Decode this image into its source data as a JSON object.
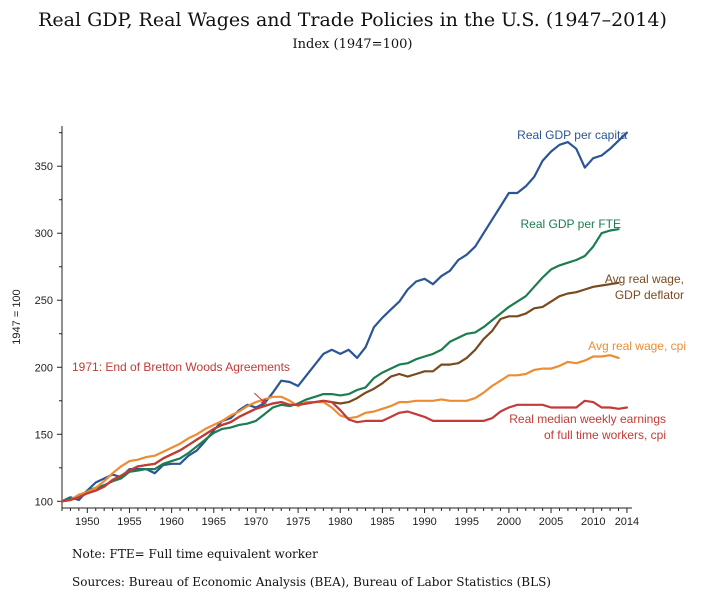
{
  "chart_data": {
    "type": "line",
    "title": "Real GDP, Real Wages and Trade Policies in the U.S. (1947–2014)",
    "subtitle": "Index (1947=100)",
    "ylabel": "1947 = 100",
    "xlabel": "",
    "xlim": [
      1947,
      2014
    ],
    "ylim": [
      95,
      380
    ],
    "x_ticks": [
      1950,
      1955,
      1960,
      1965,
      1970,
      1975,
      1980,
      1985,
      1990,
      1995,
      2000,
      2005,
      2010,
      2014
    ],
    "y_ticks": [
      100,
      150,
      200,
      250,
      300,
      350
    ],
    "grid": false,
    "series": [
      {
        "name": "Real GDP per capita",
        "color": "#2b5594",
        "x": [
          1947,
          1948,
          1949,
          1950,
          1951,
          1952,
          1953,
          1954,
          1955,
          1956,
          1957,
          1958,
          1959,
          1960,
          1961,
          1962,
          1963,
          1964,
          1965,
          1966,
          1967,
          1968,
          1969,
          1970,
          1971,
          1972,
          1973,
          1974,
          1975,
          1976,
          1977,
          1978,
          1979,
          1980,
          1981,
          1982,
          1983,
          1984,
          1985,
          1986,
          1987,
          1988,
          1989,
          1990,
          1991,
          1992,
          1993,
          1994,
          1995,
          1996,
          1997,
          1998,
          1999,
          2000,
          2001,
          2002,
          2003,
          2004,
          2005,
          2006,
          2007,
          2008,
          2009,
          2010,
          2011,
          2012,
          2013,
          2014
        ],
        "values": [
          100,
          103,
          101,
          108,
          114,
          117,
          120,
          118,
          124,
          124,
          124,
          121,
          127,
          128,
          128,
          134,
          138,
          145,
          153,
          160,
          162,
          168,
          172,
          170,
          173,
          181,
          190,
          189,
          186,
          194,
          202,
          210,
          213,
          210,
          213,
          207,
          215,
          230,
          237,
          243,
          249,
          258,
          264,
          266,
          262,
          268,
          272,
          280,
          284,
          290,
          300,
          310,
          320,
          330,
          330,
          335,
          342,
          354,
          361,
          366,
          368,
          363,
          349,
          356,
          358,
          363,
          369,
          375
        ]
      },
      {
        "name": "Real GDP per FTE",
        "color": "#1d7d50",
        "x": [
          1947,
          1948,
          1949,
          1950,
          1951,
          1952,
          1953,
          1954,
          1955,
          1956,
          1957,
          1958,
          1959,
          1960,
          1961,
          1962,
          1963,
          1964,
          1965,
          1966,
          1967,
          1968,
          1969,
          1970,
          1971,
          1972,
          1973,
          1974,
          1975,
          1976,
          1977,
          1978,
          1979,
          1980,
          1981,
          1982,
          1983,
          1984,
          1985,
          1986,
          1987,
          1988,
          1989,
          1990,
          1991,
          1992,
          1993,
          1994,
          1995,
          1996,
          1997,
          1998,
          1999,
          2000,
          2001,
          2002,
          2003,
          2004,
          2005,
          2006,
          2007,
          2008,
          2009,
          2010,
          2011,
          2012,
          2013
        ],
        "values": [
          100,
          102,
          103,
          108,
          110,
          112,
          115,
          117,
          122,
          123,
          124,
          124,
          128,
          130,
          132,
          136,
          141,
          146,
          151,
          154,
          155,
          157,
          158,
          160,
          165,
          170,
          172,
          171,
          173,
          176,
          178,
          180,
          180,
          179,
          180,
          183,
          185,
          192,
          196,
          199,
          202,
          203,
          206,
          208,
          210,
          213,
          219,
          222,
          225,
          226,
          230,
          235,
          240,
          245,
          249,
          253,
          260,
          267,
          273,
          276,
          278,
          280,
          283,
          290,
          300,
          302,
          303
        ]
      },
      {
        "name": "Avg real wage, GDP deflator",
        "color": "#7a4a1f",
        "x": [
          1947,
          1948,
          1949,
          1950,
          1951,
          1952,
          1953,
          1954,
          1955,
          1956,
          1957,
          1958,
          1959,
          1960,
          1961,
          1962,
          1963,
          1964,
          1965,
          1966,
          1967,
          1968,
          1969,
          1970,
          1971,
          1972,
          1973,
          1974,
          1975,
          1976,
          1977,
          1978,
          1979,
          1980,
          1981,
          1982,
          1983,
          1984,
          1985,
          1986,
          1987,
          1988,
          1989,
          1990,
          1991,
          1992,
          1993,
          1994,
          1995,
          1996,
          1997,
          1998,
          1999,
          2000,
          2001,
          2002,
          2003,
          2004,
          2005,
          2006,
          2007,
          2008,
          2009,
          2010,
          2011,
          2012,
          2013
        ],
        "values": [
          100,
          101,
          103,
          106,
          108,
          111,
          116,
          119,
          123,
          126,
          127,
          128,
          132,
          135,
          138,
          142,
          146,
          150,
          154,
          157,
          159,
          163,
          166,
          169,
          171,
          173,
          174,
          172,
          172,
          173,
          174,
          175,
          174,
          173,
          174,
          177,
          181,
          184,
          188,
          193,
          195,
          193,
          195,
          197,
          197,
          202,
          202,
          203,
          207,
          213,
          221,
          227,
          236,
          238,
          238,
          240,
          244,
          245,
          249,
          253,
          255,
          256,
          258,
          260,
          261,
          262,
          263
        ]
      },
      {
        "name": "Avg real wage, cpi",
        "color": "#ec8d33",
        "x": [
          1947,
          1948,
          1949,
          1950,
          1951,
          1952,
          1953,
          1954,
          1955,
          1956,
          1957,
          1958,
          1959,
          1960,
          1961,
          1962,
          1963,
          1964,
          1965,
          1966,
          1967,
          1968,
          1969,
          1970,
          1971,
          1972,
          1973,
          1974,
          1975,
          1976,
          1977,
          1978,
          1979,
          1980,
          1981,
          1982,
          1983,
          1984,
          1985,
          1986,
          1987,
          1988,
          1989,
          1990,
          1991,
          1992,
          1993,
          1994,
          1995,
          1996,
          1997,
          1998,
          1999,
          2000,
          2001,
          2002,
          2003,
          2004,
          2005,
          2006,
          2007,
          2008,
          2009,
          2010,
          2011,
          2012,
          2013
        ],
        "values": [
          100,
          101,
          105,
          107,
          110,
          115,
          121,
          126,
          130,
          131,
          133,
          134,
          137,
          140,
          143,
          147,
          150,
          154,
          157,
          160,
          164,
          167,
          171,
          174,
          176,
          178,
          178,
          175,
          171,
          174,
          174,
          174,
          170,
          164,
          162,
          163,
          166,
          167,
          169,
          171,
          174,
          174,
          175,
          175,
          175,
          176,
          175,
          175,
          175,
          177,
          181,
          186,
          190,
          194,
          194,
          195,
          198,
          199,
          199,
          201,
          204,
          203,
          205,
          208,
          208,
          209,
          207
        ]
      },
      {
        "name": "Real median weekly earnings of full time workers, cpi",
        "color": "#c23b37",
        "x": [
          1947,
          1948,
          1949,
          1950,
          1951,
          1952,
          1953,
          1954,
          1955,
          1956,
          1957,
          1958,
          1959,
          1960,
          1961,
          1962,
          1963,
          1964,
          1965,
          1966,
          1967,
          1968,
          1969,
          1970,
          1971,
          1972,
          1973,
          1974,
          1975,
          1976,
          1977,
          1978,
          1979,
          1980,
          1981,
          1982,
          1983,
          1984,
          1985,
          1986,
          1987,
          1988,
          1989,
          1990,
          1991,
          1992,
          1993,
          1994,
          1995,
          1996,
          1997,
          1998,
          1999,
          2000,
          2001,
          2002,
          2003,
          2004,
          2005,
          2006,
          2007,
          2008,
          2009,
          2010,
          2011,
          2012,
          2013,
          2014
        ],
        "values": [
          100,
          101,
          103,
          106,
          108,
          111,
          116,
          119,
          123,
          126,
          127,
          128,
          132,
          135,
          138,
          142,
          146,
          150,
          154,
          157,
          159,
          163,
          166,
          169,
          171,
          173,
          174,
          172,
          172,
          173,
          174,
          175,
          174,
          168,
          161,
          159,
          160,
          160,
          160,
          163,
          166,
          167,
          165,
          163,
          160,
          160,
          160,
          160,
          160,
          160,
          160,
          162,
          167,
          170,
          172,
          172,
          172,
          172,
          170,
          170,
          170,
          170,
          175,
          174,
          170,
          170,
          169,
          170
        ]
      }
    ],
    "series_labels": [
      {
        "lines": [
          "Real GDP per capita"
        ]
      },
      {
        "lines": [
          "Real GDP per FTE"
        ]
      },
      {
        "lines": [
          "Avg real wage,",
          "GDP deflator"
        ]
      },
      {
        "lines": [
          "Avg real wage, cpi"
        ]
      },
      {
        "lines": [
          "Real median weekly earnings",
          "of full time workers, cpi"
        ]
      }
    ],
    "annotations": [
      {
        "text": "1971: End of Bretton Woods Agreements",
        "x": 1971,
        "y": 174,
        "color": "#c23b37"
      }
    ]
  },
  "footer": {
    "note": "Note: FTE= Full time equivalent worker",
    "sources": "Sources: Bureau of Economic Analysis (BEA), Bureau of Labor Statistics (BLS)"
  }
}
